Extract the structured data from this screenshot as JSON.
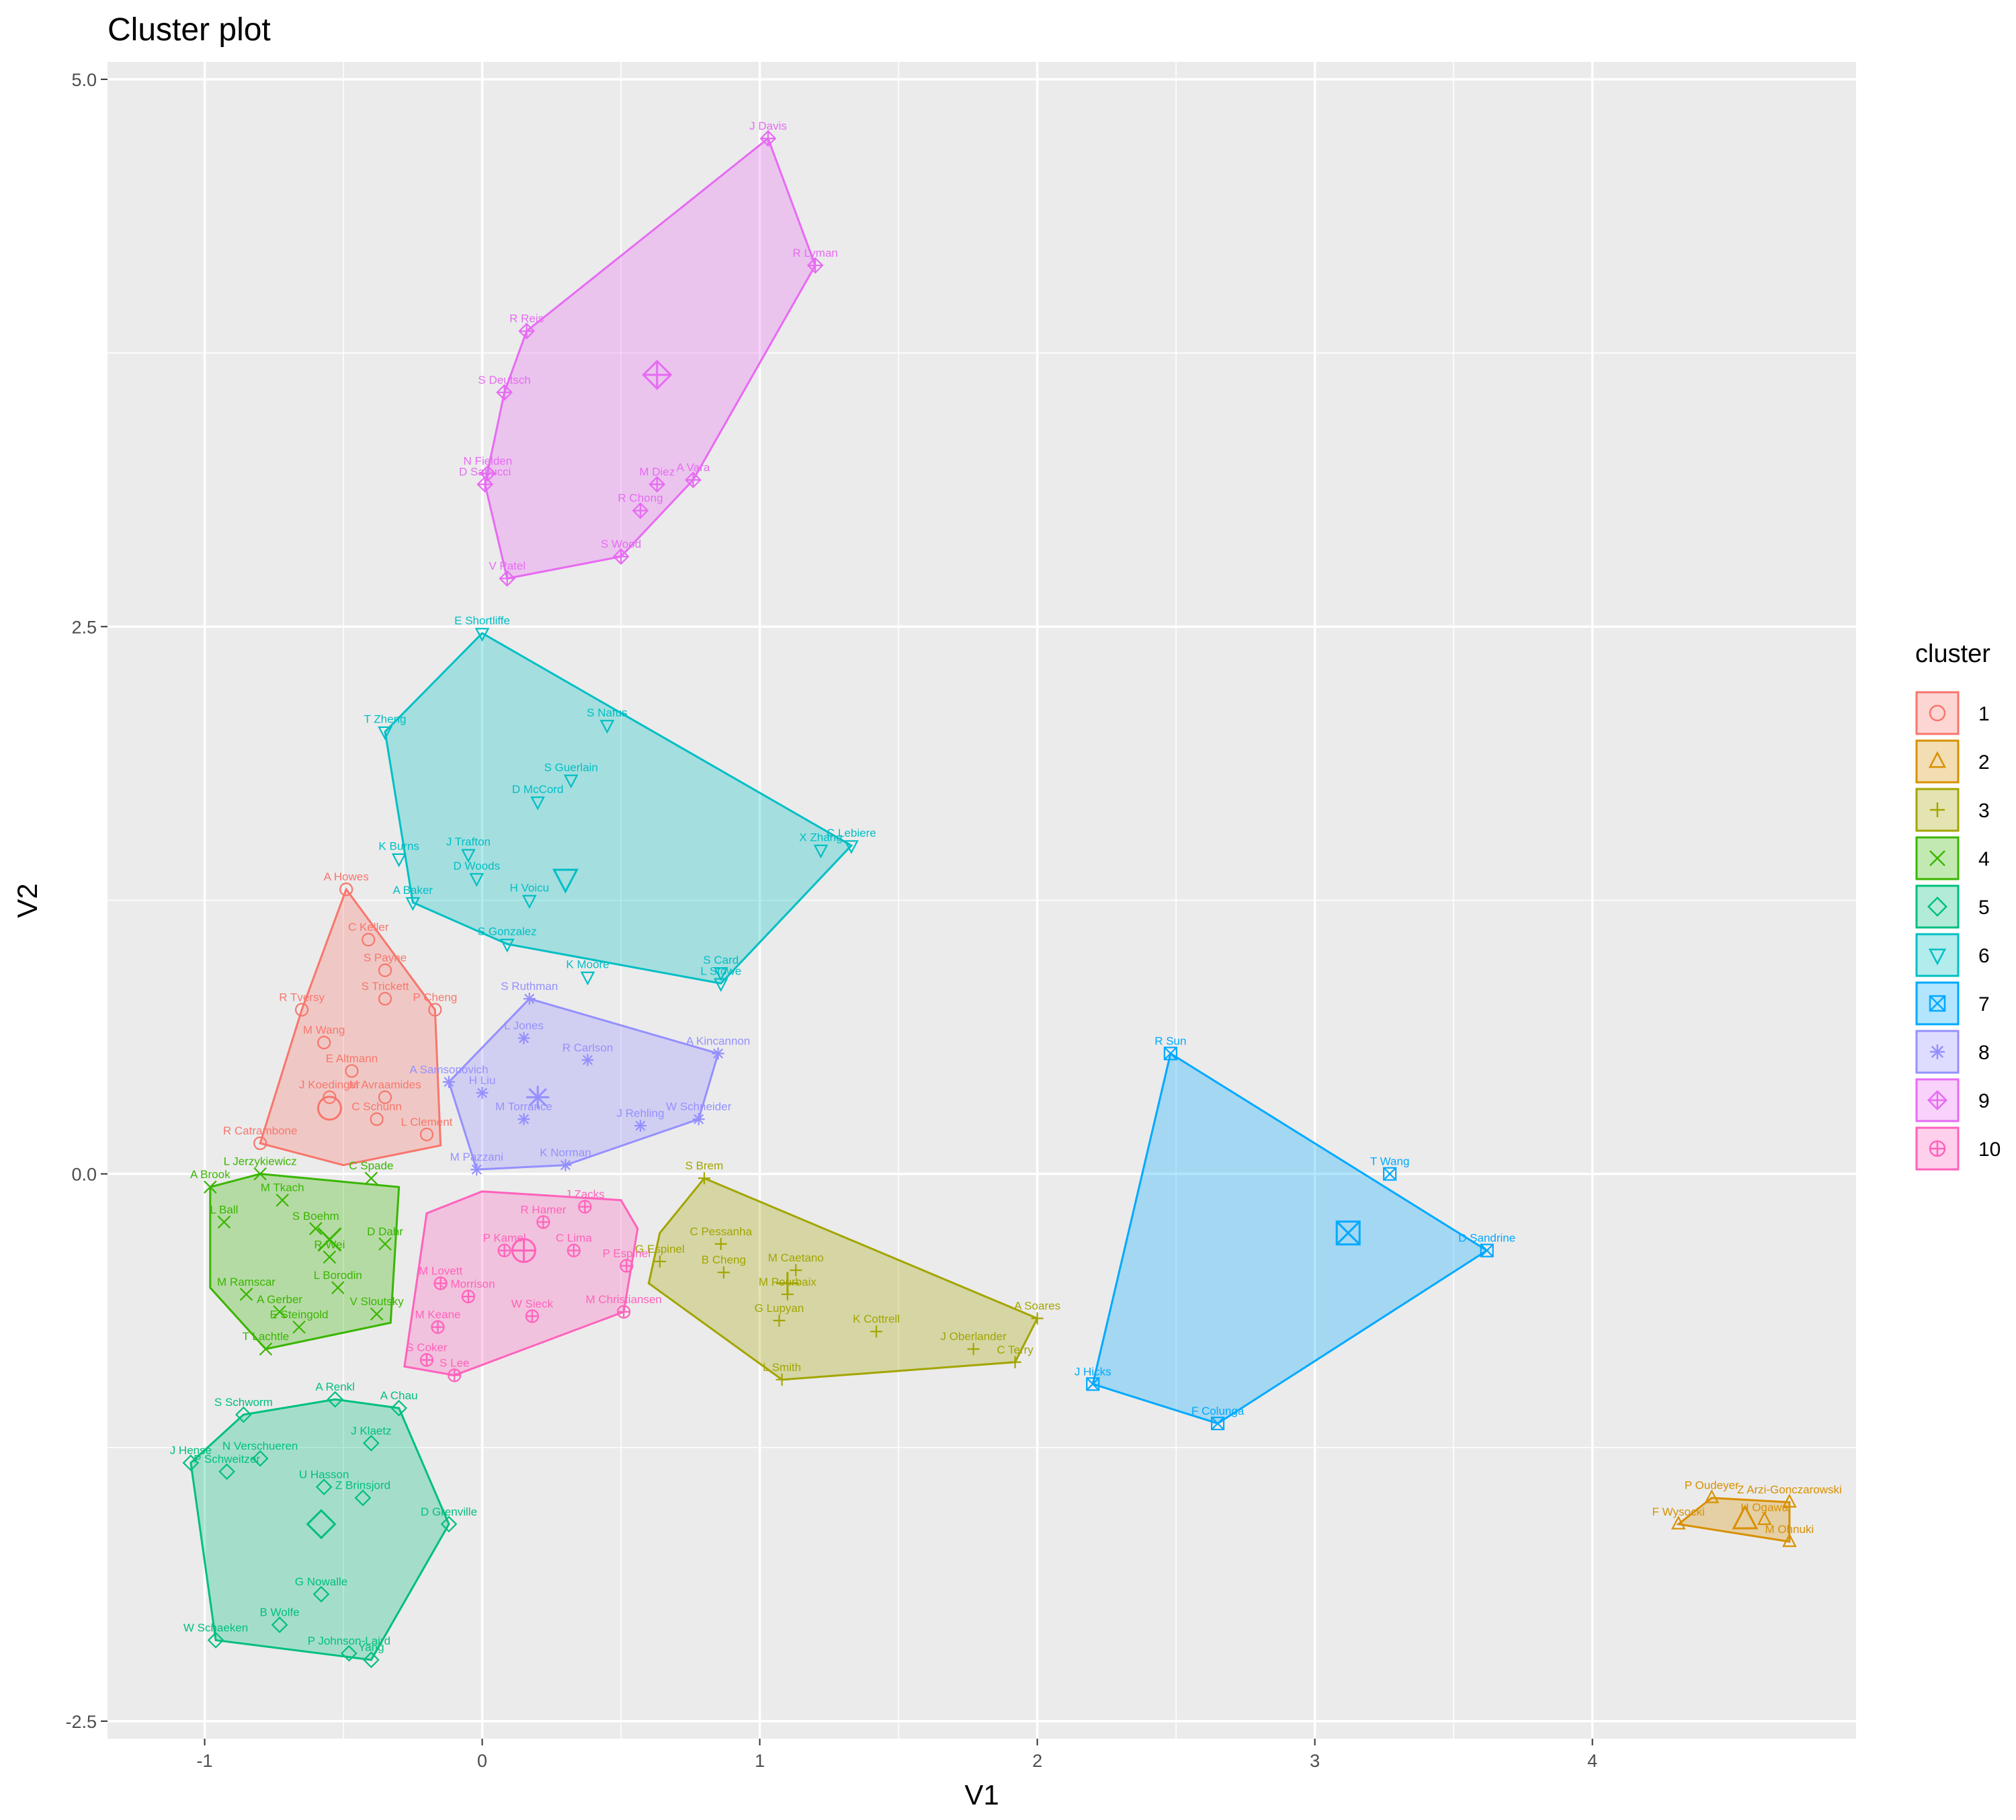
{
  "chart_data": {
    "type": "scatter",
    "title": "Cluster plot",
    "xlabel": "V1",
    "ylabel": "V2",
    "xlim": [
      -1.35,
      4.95
    ],
    "ylim": [
      -2.58,
      5.08
    ],
    "xticks": [
      -1,
      0,
      1,
      2,
      3,
      4
    ],
    "yticks": [
      5.0,
      2.5,
      0.0,
      -2.5
    ],
    "ytick_labels": [
      "5.0",
      "2.5",
      "0.0",
      "-2.5"
    ],
    "grid": true,
    "legend": {
      "title": "cluster",
      "placement": "right"
    },
    "clusters": [
      {
        "id": "1",
        "color": "#F8766D",
        "shape": "circle",
        "center": [
          -0.55,
          0.3
        ],
        "hull": [
          [
            -0.49,
            1.3
          ],
          [
            -0.17,
            0.75
          ],
          [
            -0.15,
            0.13
          ],
          [
            -0.5,
            0.04
          ],
          [
            -0.8,
            0.14
          ],
          [
            -0.65,
            0.75
          ]
        ],
        "points": [
          {
            "name": "A Howes",
            "x": -0.49,
            "y": 1.3
          },
          {
            "name": "C Keller",
            "x": -0.41,
            "y": 1.07
          },
          {
            "name": "S Payne",
            "x": -0.35,
            "y": 0.93
          },
          {
            "name": "S Trickett",
            "x": -0.35,
            "y": 0.8
          },
          {
            "name": "P Cheng",
            "x": -0.17,
            "y": 0.75
          },
          {
            "name": "R Tversy",
            "x": -0.65,
            "y": 0.75
          },
          {
            "name": "M Wang",
            "x": -0.57,
            "y": 0.6
          },
          {
            "name": "E Altmann",
            "x": -0.47,
            "y": 0.47
          },
          {
            "name": "M Avraamides",
            "x": -0.35,
            "y": 0.35
          },
          {
            "name": "C Schunn",
            "x": -0.38,
            "y": 0.25
          },
          {
            "name": "R Catrambone",
            "x": -0.8,
            "y": 0.14
          },
          {
            "name": "L Clement",
            "x": -0.2,
            "y": 0.18
          },
          {
            "name": "J Koedinger",
            "x": -0.55,
            "y": 0.35
          }
        ]
      },
      {
        "id": "2",
        "color": "#D89000",
        "shape": "triangle",
        "center": [
          4.55,
          -1.58
        ],
        "hull": [
          [
            4.43,
            -1.48
          ],
          [
            4.71,
            -1.5
          ],
          [
            4.71,
            -1.68
          ],
          [
            4.31,
            -1.6
          ]
        ],
        "points": [
          {
            "name": "P Oudeyer",
            "x": 4.43,
            "y": -1.48
          },
          {
            "name": "Z Arzi-Gonczarowski",
            "x": 4.71,
            "y": -1.5
          },
          {
            "name": "F Wysocki",
            "x": 4.31,
            "y": -1.6
          },
          {
            "name": "H Ogawa",
            "x": 4.62,
            "y": -1.58
          },
          {
            "name": "M Ohnuki",
            "x": 4.71,
            "y": -1.68
          }
        ]
      },
      {
        "id": "3",
        "color": "#A3A500",
        "shape": "plus",
        "center": [
          1.1,
          -0.5
        ],
        "hull": [
          [
            0.8,
            -0.02
          ],
          [
            2.0,
            -0.66
          ],
          [
            1.92,
            -0.86
          ],
          [
            1.08,
            -0.94
          ],
          [
            0.6,
            -0.5
          ],
          [
            0.64,
            -0.27
          ]
        ],
        "points": [
          {
            "name": "S Brem",
            "x": 0.8,
            "y": -0.02
          },
          {
            "name": "C Pessanha",
            "x": 0.86,
            "y": -0.32
          },
          {
            "name": "G Espinel",
            "x": 0.64,
            "y": -0.4
          },
          {
            "name": "B Cheng",
            "x": 0.87,
            "y": -0.45
          },
          {
            "name": "M Caetano",
            "x": 1.13,
            "y": -0.44
          },
          {
            "name": "M Pourbaix",
            "x": 1.1,
            "y": -0.55
          },
          {
            "name": "G Lupyan",
            "x": 1.07,
            "y": -0.67
          },
          {
            "name": "K Cottrell",
            "x": 1.42,
            "y": -0.72
          },
          {
            "name": "A Soares",
            "x": 2.0,
            "y": -0.66
          },
          {
            "name": "J Oberlander",
            "x": 1.77,
            "y": -0.8
          },
          {
            "name": "C Terry",
            "x": 1.92,
            "y": -0.86
          },
          {
            "name": "L Smith",
            "x": 1.08,
            "y": -0.94
          }
        ]
      },
      {
        "id": "4",
        "color": "#39B600",
        "shape": "cross",
        "center": [
          -0.55,
          -0.3
        ],
        "hull": [
          [
            -0.8,
            0.0
          ],
          [
            -0.3,
            -0.06
          ],
          [
            -0.33,
            -0.68
          ],
          [
            -0.78,
            -0.8
          ],
          [
            -0.98,
            -0.52
          ],
          [
            -0.98,
            -0.06
          ]
        ],
        "points": [
          {
            "name": "L Jerzykiewicz",
            "x": -0.8,
            "y": 0.0
          },
          {
            "name": "A Brook",
            "x": -0.98,
            "y": -0.06
          },
          {
            "name": "L Ball",
            "x": -0.93,
            "y": -0.22
          },
          {
            "name": "M Ramscar",
            "x": -0.85,
            "y": -0.55
          },
          {
            "name": "A Gerber",
            "x": -0.73,
            "y": -0.63
          },
          {
            "name": "T Lachtle",
            "x": -0.78,
            "y": -0.8
          },
          {
            "name": "E Steingold",
            "x": -0.66,
            "y": -0.7
          },
          {
            "name": "V Sloutsky",
            "x": -0.38,
            "y": -0.64
          },
          {
            "name": "L Borodin",
            "x": -0.52,
            "y": -0.52
          },
          {
            "name": "D Dahr",
            "x": -0.35,
            "y": -0.32
          },
          {
            "name": "C Spade",
            "x": -0.4,
            "y": -0.02
          },
          {
            "name": "M Tkach",
            "x": -0.72,
            "y": -0.12
          },
          {
            "name": "S Boehm",
            "x": -0.6,
            "y": -0.25
          },
          {
            "name": "R Wei",
            "x": -0.55,
            "y": -0.38
          }
        ]
      },
      {
        "id": "5",
        "color": "#00BF7D",
        "shape": "diamond",
        "center": [
          -0.58,
          -1.6
        ],
        "hull": [
          [
            -0.53,
            -1.03
          ],
          [
            -0.3,
            -1.07
          ],
          [
            -0.12,
            -1.6
          ],
          [
            -0.4,
            -2.22
          ],
          [
            -0.96,
            -2.13
          ],
          [
            -1.05,
            -1.32
          ],
          [
            -0.86,
            -1.1
          ]
        ],
        "points": [
          {
            "name": "A Renkl",
            "x": -0.53,
            "y": -1.03
          },
          {
            "name": "A Chau",
            "x": -0.3,
            "y": -1.07
          },
          {
            "name": "S Schworm",
            "x": -0.86,
            "y": -1.1
          },
          {
            "name": "N Verschueren",
            "x": -0.8,
            "y": -1.3
          },
          {
            "name": "J Hense",
            "x": -1.05,
            "y": -1.32
          },
          {
            "name": "P Schweitzer",
            "x": -0.92,
            "y": -1.36
          },
          {
            "name": "J Klaetz",
            "x": -0.4,
            "y": -1.23
          },
          {
            "name": "U Hasson",
            "x": -0.57,
            "y": -1.43
          },
          {
            "name": "Z Brinsjord",
            "x": -0.43,
            "y": -1.48
          },
          {
            "name": "D Grenville",
            "x": -0.12,
            "y": -1.6
          },
          {
            "name": "G Nowalle",
            "x": -0.58,
            "y": -1.92
          },
          {
            "name": "B Wolfe",
            "x": -0.73,
            "y": -2.06
          },
          {
            "name": "W Schaeken",
            "x": -0.96,
            "y": -2.13
          },
          {
            "name": "P Johnson-Laird",
            "x": -0.48,
            "y": -2.19
          },
          {
            "name": "Yang",
            "x": -0.4,
            "y": -2.22
          }
        ]
      },
      {
        "id": "6",
        "color": "#00BFC4",
        "shape": "triangle-down",
        "center": [
          0.3,
          1.35
        ],
        "hull": [
          [
            0.0,
            2.47
          ],
          [
            1.33,
            1.5
          ],
          [
            0.86,
            0.87
          ],
          [
            0.09,
            1.05
          ],
          [
            -0.25,
            1.24
          ],
          [
            -0.35,
            2.02
          ]
        ],
        "points": [
          {
            "name": "E Shortliffe",
            "x": 0.0,
            "y": 2.47
          },
          {
            "name": "T Zheng",
            "x": -0.35,
            "y": 2.02
          },
          {
            "name": "S Nafus",
            "x": 0.45,
            "y": 2.05
          },
          {
            "name": "S Guerlain",
            "x": 0.32,
            "y": 1.8
          },
          {
            "name": "D McCord",
            "x": 0.2,
            "y": 1.7
          },
          {
            "name": "X Zhang",
            "x": 1.22,
            "y": 1.48
          },
          {
            "name": "C Lebiere",
            "x": 1.33,
            "y": 1.5
          },
          {
            "name": "K Burns",
            "x": -0.3,
            "y": 1.44
          },
          {
            "name": "J Trafton",
            "x": -0.05,
            "y": 1.46
          },
          {
            "name": "D Woods",
            "x": -0.02,
            "y": 1.35
          },
          {
            "name": "H Voicu",
            "x": 0.17,
            "y": 1.25
          },
          {
            "name": "A Baker",
            "x": -0.25,
            "y": 1.24
          },
          {
            "name": "S Gonzalez",
            "x": 0.09,
            "y": 1.05
          },
          {
            "name": "K Moore",
            "x": 0.38,
            "y": 0.9
          },
          {
            "name": "S Card",
            "x": 0.86,
            "y": 0.92
          },
          {
            "name": "L Stowe",
            "x": 0.86,
            "y": 0.87
          }
        ]
      },
      {
        "id": "7",
        "color": "#00A9FF",
        "shape": "square-x",
        "center": [
          3.12,
          -0.27
        ],
        "hull": [
          [
            2.48,
            0.55
          ],
          [
            3.62,
            -0.35
          ],
          [
            2.65,
            -1.14
          ],
          [
            2.2,
            -0.96
          ]
        ],
        "points": [
          {
            "name": "R Sun",
            "x": 2.48,
            "y": 0.55
          },
          {
            "name": "T Wang",
            "x": 3.27,
            "y": 0.0
          },
          {
            "name": "D Sandrine",
            "x": 3.62,
            "y": -0.35
          },
          {
            "name": "J Hicks",
            "x": 2.2,
            "y": -0.96
          },
          {
            "name": "F Colunga",
            "x": 2.65,
            "y": -1.14
          }
        ]
      },
      {
        "id": "8",
        "color": "#9590FF",
        "shape": "asterisk",
        "center": [
          0.2,
          0.35
        ],
        "hull": [
          [
            0.17,
            0.8
          ],
          [
            0.85,
            0.55
          ],
          [
            0.78,
            0.25
          ],
          [
            0.3,
            0.04
          ],
          [
            -0.02,
            0.02
          ],
          [
            -0.12,
            0.42
          ]
        ],
        "points": [
          {
            "name": "S Ruthman",
            "x": 0.17,
            "y": 0.8
          },
          {
            "name": "A Kincannon",
            "x": 0.85,
            "y": 0.55
          },
          {
            "name": "L Jones",
            "x": 0.15,
            "y": 0.62
          },
          {
            "name": "R Carlson",
            "x": 0.38,
            "y": 0.52
          },
          {
            "name": "A Samsonovich",
            "x": -0.12,
            "y": 0.42
          },
          {
            "name": "H Liu",
            "x": 0.0,
            "y": 0.37
          },
          {
            "name": "W Schneider",
            "x": 0.78,
            "y": 0.25
          },
          {
            "name": "J Rehling",
            "x": 0.57,
            "y": 0.22
          },
          {
            "name": "M Torrance",
            "x": 0.15,
            "y": 0.25
          },
          {
            "name": "K Norman",
            "x": 0.3,
            "y": 0.04
          },
          {
            "name": "M Pazzani",
            "x": -0.02,
            "y": 0.02
          }
        ]
      },
      {
        "id": "9",
        "color": "#E76BF3",
        "shape": "diamond-plus",
        "center": [
          0.63,
          3.65
        ],
        "hull": [
          [
            1.03,
            4.73
          ],
          [
            1.2,
            4.15
          ],
          [
            0.76,
            3.17
          ],
          [
            0.5,
            2.82
          ],
          [
            0.09,
            2.72
          ],
          [
            0.01,
            3.15
          ],
          [
            0.08,
            3.57
          ],
          [
            0.16,
            3.85
          ]
        ],
        "points": [
          {
            "name": "J Davis",
            "x": 1.03,
            "y": 4.73
          },
          {
            "name": "R Lyman",
            "x": 1.2,
            "y": 4.15
          },
          {
            "name": "R Reis",
            "x": 0.16,
            "y": 3.85
          },
          {
            "name": "S Deutsch",
            "x": 0.08,
            "y": 3.57
          },
          {
            "name": "N Fielden",
            "x": 0.02,
            "y": 3.2
          },
          {
            "name": "D Sabucci",
            "x": 0.01,
            "y": 3.15
          },
          {
            "name": "M Diez",
            "x": 0.63,
            "y": 3.15
          },
          {
            "name": "A Vara",
            "x": 0.76,
            "y": 3.17
          },
          {
            "name": "R Chong",
            "x": 0.57,
            "y": 3.03
          },
          {
            "name": "S Wood",
            "x": 0.5,
            "y": 2.82
          },
          {
            "name": "V Patel",
            "x": 0.09,
            "y": 2.72
          }
        ]
      },
      {
        "id": "10",
        "color": "#FF62BC",
        "shape": "circle-plus",
        "center": [
          0.15,
          -0.35
        ],
        "hull": [
          [
            0.0,
            -0.08
          ],
          [
            0.5,
            -0.12
          ],
          [
            0.56,
            -0.25
          ],
          [
            0.51,
            -0.63
          ],
          [
            -0.1,
            -0.92
          ],
          [
            -0.28,
            -0.88
          ],
          [
            -0.2,
            -0.18
          ]
        ],
        "points": [
          {
            "name": "J Zacks",
            "x": 0.37,
            "y": -0.15
          },
          {
            "name": "C Lima",
            "x": 0.33,
            "y": -0.35
          },
          {
            "name": "P Espinel",
            "x": 0.52,
            "y": -0.42
          },
          {
            "name": "M Christiansen",
            "x": 0.51,
            "y": -0.63
          },
          {
            "name": "W Sieck",
            "x": 0.18,
            "y": -0.65
          },
          {
            "name": "M Lovett",
            "x": -0.15,
            "y": -0.5
          },
          {
            "name": "M Keane",
            "x": -0.16,
            "y": -0.7
          },
          {
            "name": "J Morrison",
            "x": -0.05,
            "y": -0.56
          },
          {
            "name": "S Coker",
            "x": -0.2,
            "y": -0.85
          },
          {
            "name": "S Lee",
            "x": -0.1,
            "y": -0.92
          },
          {
            "name": "R Hamer",
            "x": 0.22,
            "y": -0.22
          },
          {
            "name": "P Kamel",
            "x": 0.08,
            "y": -0.35
          }
        ]
      }
    ]
  }
}
